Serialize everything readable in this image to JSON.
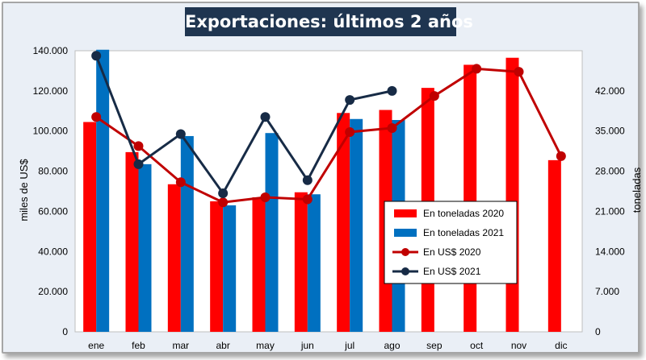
{
  "chart_data": {
    "type": "bar",
    "title": "Exportaciones: últimos 2 años",
    "categories": [
      "ene",
      "feb",
      "mar",
      "abr",
      "may",
      "jun",
      "jul",
      "ago",
      "sep",
      "oct",
      "nov",
      "dic"
    ],
    "left_axis": {
      "label": "miles de US$",
      "min": 0,
      "max": 140000,
      "ticks": [
        "0",
        "20.000",
        "40.000",
        "60.000",
        "80.000",
        "100.000",
        "120.000",
        "140.000"
      ]
    },
    "right_axis": {
      "label": "toneladas",
      "min": 0,
      "max": 49000,
      "ticks": [
        "0",
        "7.000",
        "14.000",
        "21.000",
        "28.000",
        "35.000",
        "42.000"
      ]
    },
    "series": [
      {
        "name": "En toneladas 2020",
        "kind": "bar",
        "axis": "left",
        "color": "#ff0000",
        "values": [
          104500,
          89500,
          73500,
          65000,
          67000,
          69500,
          109000,
          110500,
          121500,
          133000,
          136500,
          85500
        ]
      },
      {
        "name": "En toneladas 2021",
        "kind": "bar",
        "axis": "left",
        "color": "#0070c0",
        "values": [
          140500,
          83500,
          97500,
          63000,
          99000,
          68500,
          106000,
          105500,
          null,
          null,
          null,
          null
        ]
      },
      {
        "name": "En US$ 2020",
        "kind": "line",
        "axis": "left",
        "color": "#c00000",
        "values": [
          107000,
          92500,
          74500,
          64500,
          67000,
          66000,
          99500,
          101500,
          117500,
          131000,
          129500,
          87500
        ]
      },
      {
        "name": "En US$ 2021",
        "kind": "line",
        "axis": "left",
        "color": "#172b46",
        "values": [
          137500,
          83500,
          98500,
          69000,
          107000,
          75500,
          115500,
          120000,
          null,
          null,
          null,
          null
        ]
      }
    ],
    "grid": false,
    "legend_position": "inside right"
  }
}
